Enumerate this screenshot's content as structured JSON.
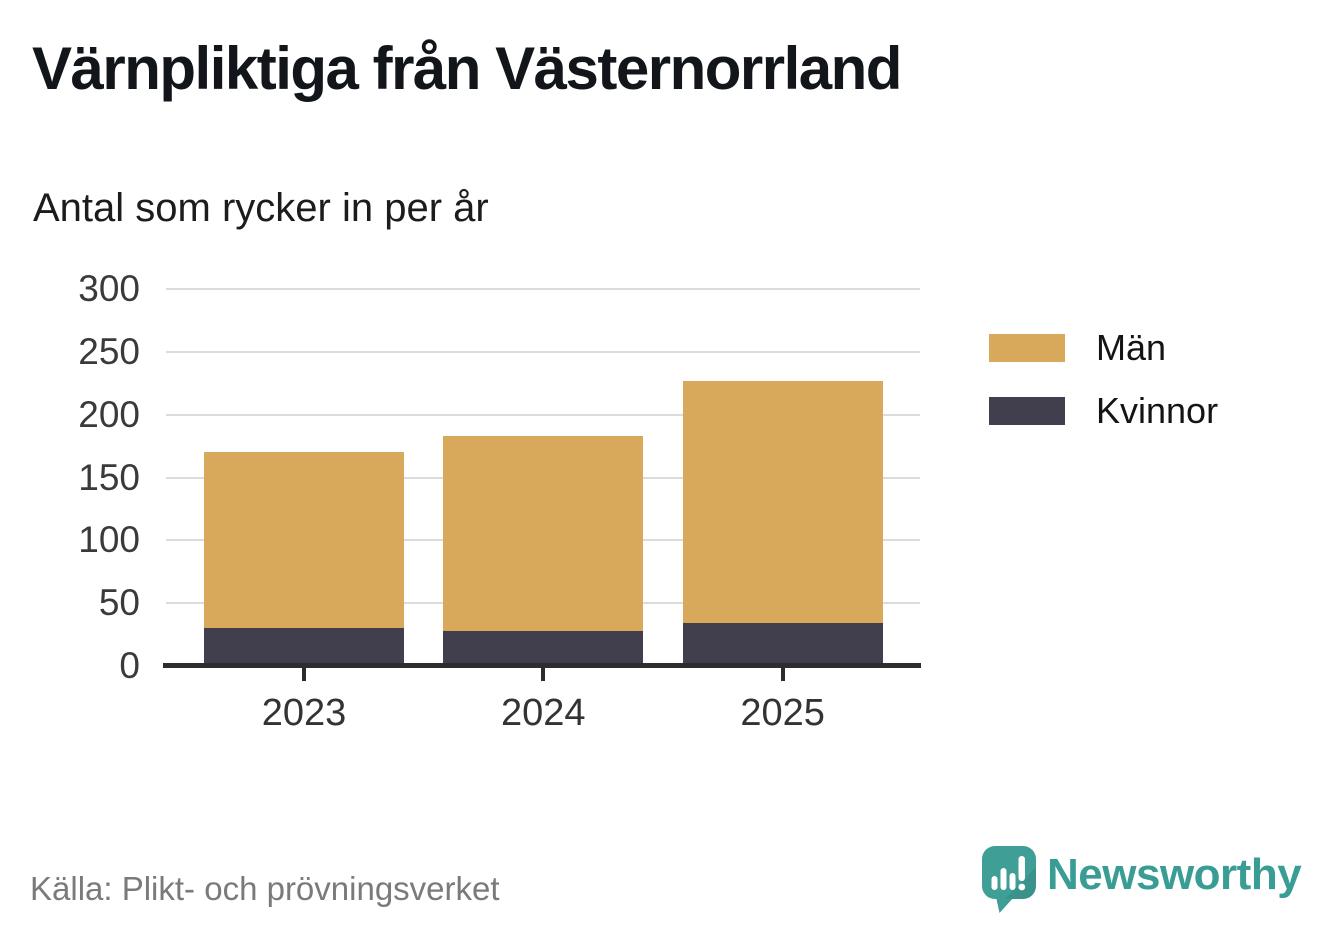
{
  "title": "Värnpliktiga från Västernorrland",
  "subtitle": "Antal som rycker in per år",
  "footer": {
    "source": "Källa: Plikt- och prövningsverket",
    "brand_name": "Newsworthy"
  },
  "colors": {
    "men": "#d8a95b",
    "women": "#413e4d",
    "grid": "#dcdcdc",
    "axis": "#2d2d2d",
    "brand_teal": "#3a9d95"
  },
  "chart_data": {
    "type": "bar",
    "stacked": true,
    "title": "Värnpliktiga från Västernorrland",
    "subtitle": "Antal som rycker in per år",
    "categories": [
      "2023",
      "2024",
      "2025"
    ],
    "series": [
      {
        "name": "Män",
        "color": "#d8a95b",
        "values": [
          140,
          155,
          193
        ]
      },
      {
        "name": "Kvinnor",
        "color": "#413e4d",
        "values": [
          30,
          28,
          34
        ]
      }
    ],
    "totals": [
      170,
      183,
      227
    ],
    "xlabel": "",
    "ylabel": "",
    "ylim": [
      0,
      300
    ],
    "yticks": [
      0,
      50,
      100,
      150,
      200,
      250,
      300
    ],
    "grid": true,
    "legend_position": "right",
    "source": "Källa: Plikt- och prövningsverket"
  }
}
